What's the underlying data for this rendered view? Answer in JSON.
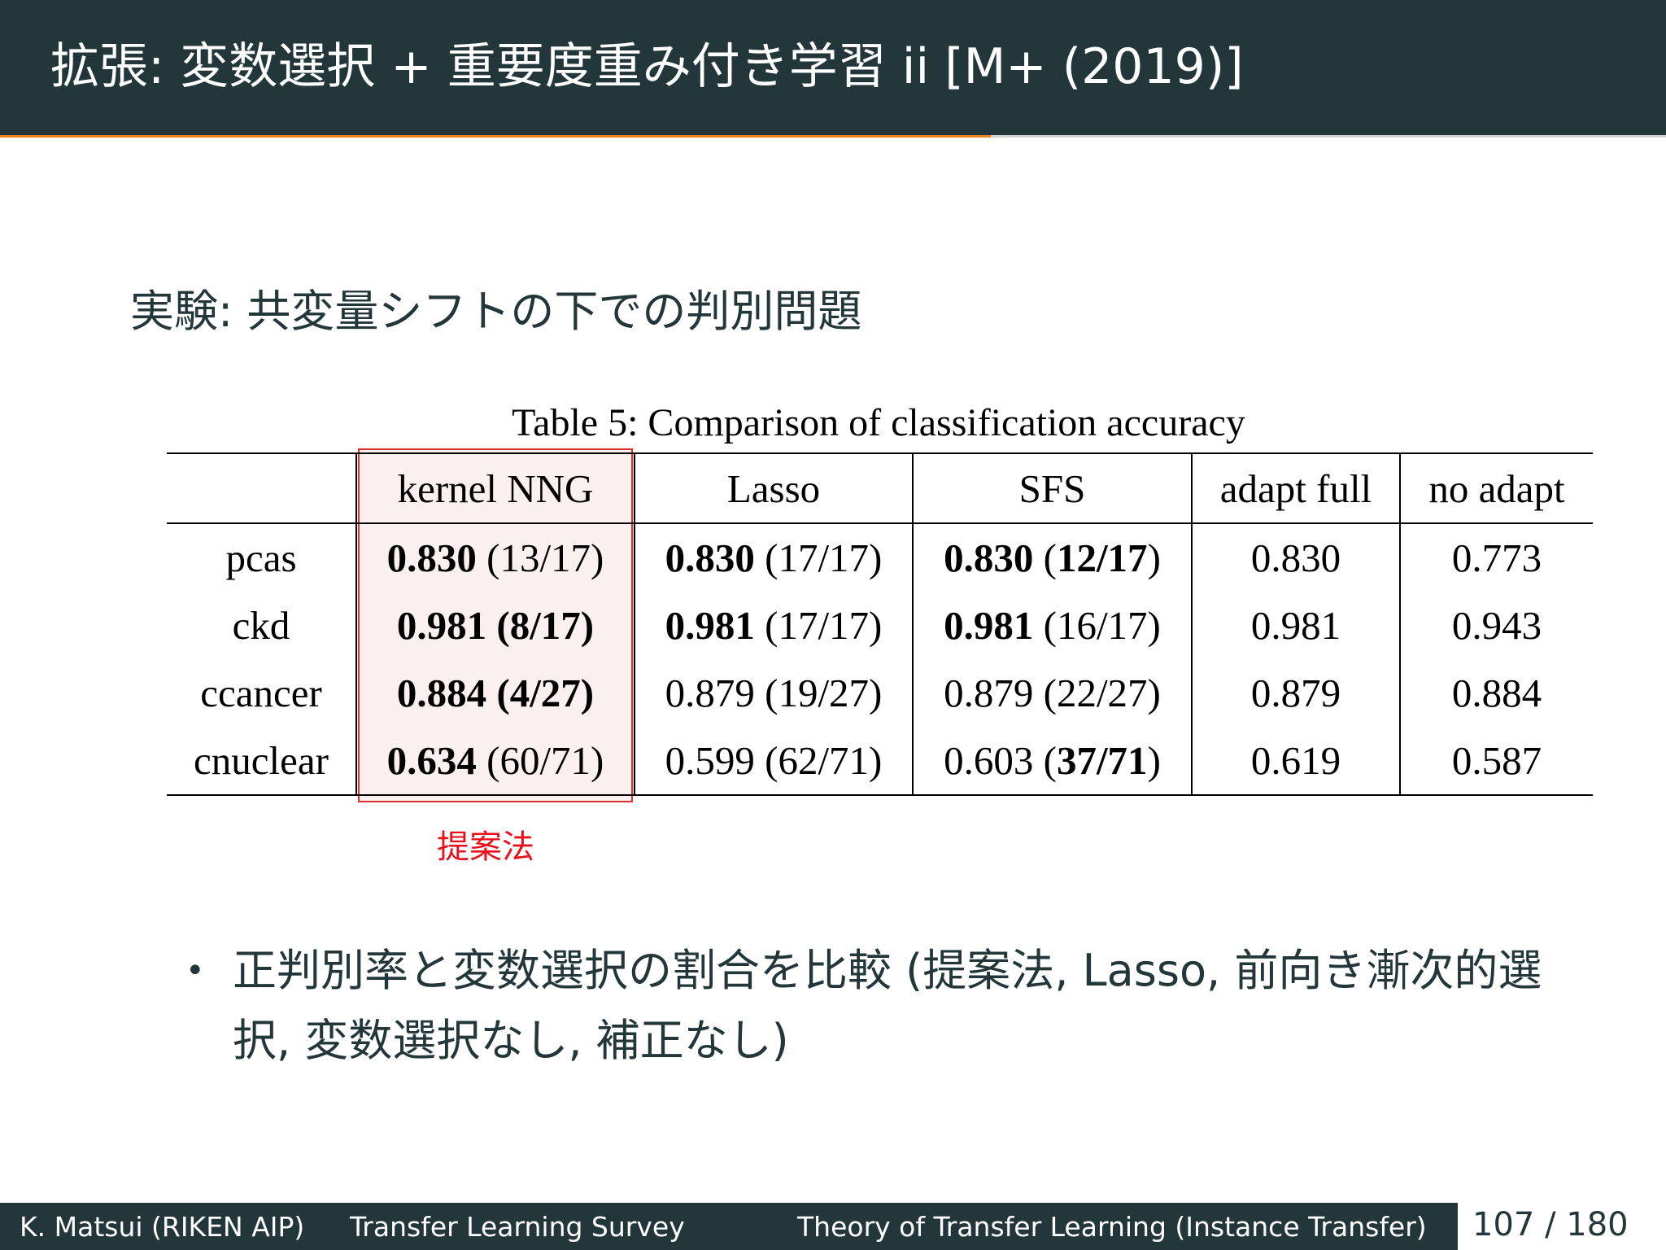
{
  "slide_title": "拡張: 変数選択 + 重要度重み付き学習 ii [M+ (2019)]",
  "heading": "実験: 共変量シフトの下での判別問題",
  "table": {
    "caption": "Table 5: Comparison of classification accuracy",
    "columns": [
      "",
      "kernel NNG",
      "Lasso",
      "SFS",
      "adapt full",
      "no adapt"
    ],
    "rows": [
      {
        "name": "pcas",
        "kernel_nng": {
          "acc": "0.830",
          "acc_bold": true,
          "sel": "(13/17)",
          "sel_bold": false
        },
        "lasso": {
          "acc": "0.830",
          "acc_bold": true,
          "sel": "(17/17)",
          "sel_bold": false
        },
        "sfs": {
          "acc": "0.830",
          "acc_bold": true,
          "sel": "12/17",
          "sel_bold": true
        },
        "adapt_full": "0.830",
        "no_adapt": "0.773"
      },
      {
        "name": "ckd",
        "kernel_nng": {
          "acc": "0.981",
          "acc_bold": true,
          "sel": "(8/17)",
          "sel_bold": true
        },
        "lasso": {
          "acc": "0.981",
          "acc_bold": true,
          "sel": "(17/17)",
          "sel_bold": false
        },
        "sfs": {
          "acc": "0.981",
          "acc_bold": true,
          "sel": "(16/17)",
          "sel_bold": false
        },
        "adapt_full": "0.981",
        "no_adapt": "0.943"
      },
      {
        "name": "ccancer",
        "kernel_nng": {
          "acc": "0.884",
          "acc_bold": true,
          "sel": "(4/27)",
          "sel_bold": true
        },
        "lasso": {
          "acc": "0.879",
          "acc_bold": false,
          "sel": "(19/27)",
          "sel_bold": false
        },
        "sfs": {
          "acc": "0.879",
          "acc_bold": false,
          "sel": "(22/27)",
          "sel_bold": false
        },
        "adapt_full": "0.879",
        "no_adapt": "0.884"
      },
      {
        "name": "cnuclear",
        "kernel_nng": {
          "acc": "0.634",
          "acc_bold": true,
          "sel": "(60/71)",
          "sel_bold": false
        },
        "lasso": {
          "acc": "0.599",
          "acc_bold": false,
          "sel": "(62/71)",
          "sel_bold": false
        },
        "sfs": {
          "acc": "0.603",
          "acc_bold": false,
          "sel": "37/71",
          "sel_bold": true
        },
        "adapt_full": "0.619",
        "no_adapt": "0.587"
      }
    ]
  },
  "highlight_label": "提案法",
  "highlight_color": "#e8111b",
  "bullets": [
    "正判別率と変数選択の割合を比較 (提案法, Lasso, 前向き漸次的選択, 変数選択なし, 補正なし)"
  ],
  "footer": {
    "author": "K. Matsui (RIKEN AIP)",
    "title": "Transfer Learning Survey",
    "section": "Theory of Transfer Learning (Instance Transfer)",
    "page": "107 / 180"
  },
  "colors": {
    "title_bg": "#23373b",
    "accent": "#eb811b",
    "text": "#23373b"
  }
}
